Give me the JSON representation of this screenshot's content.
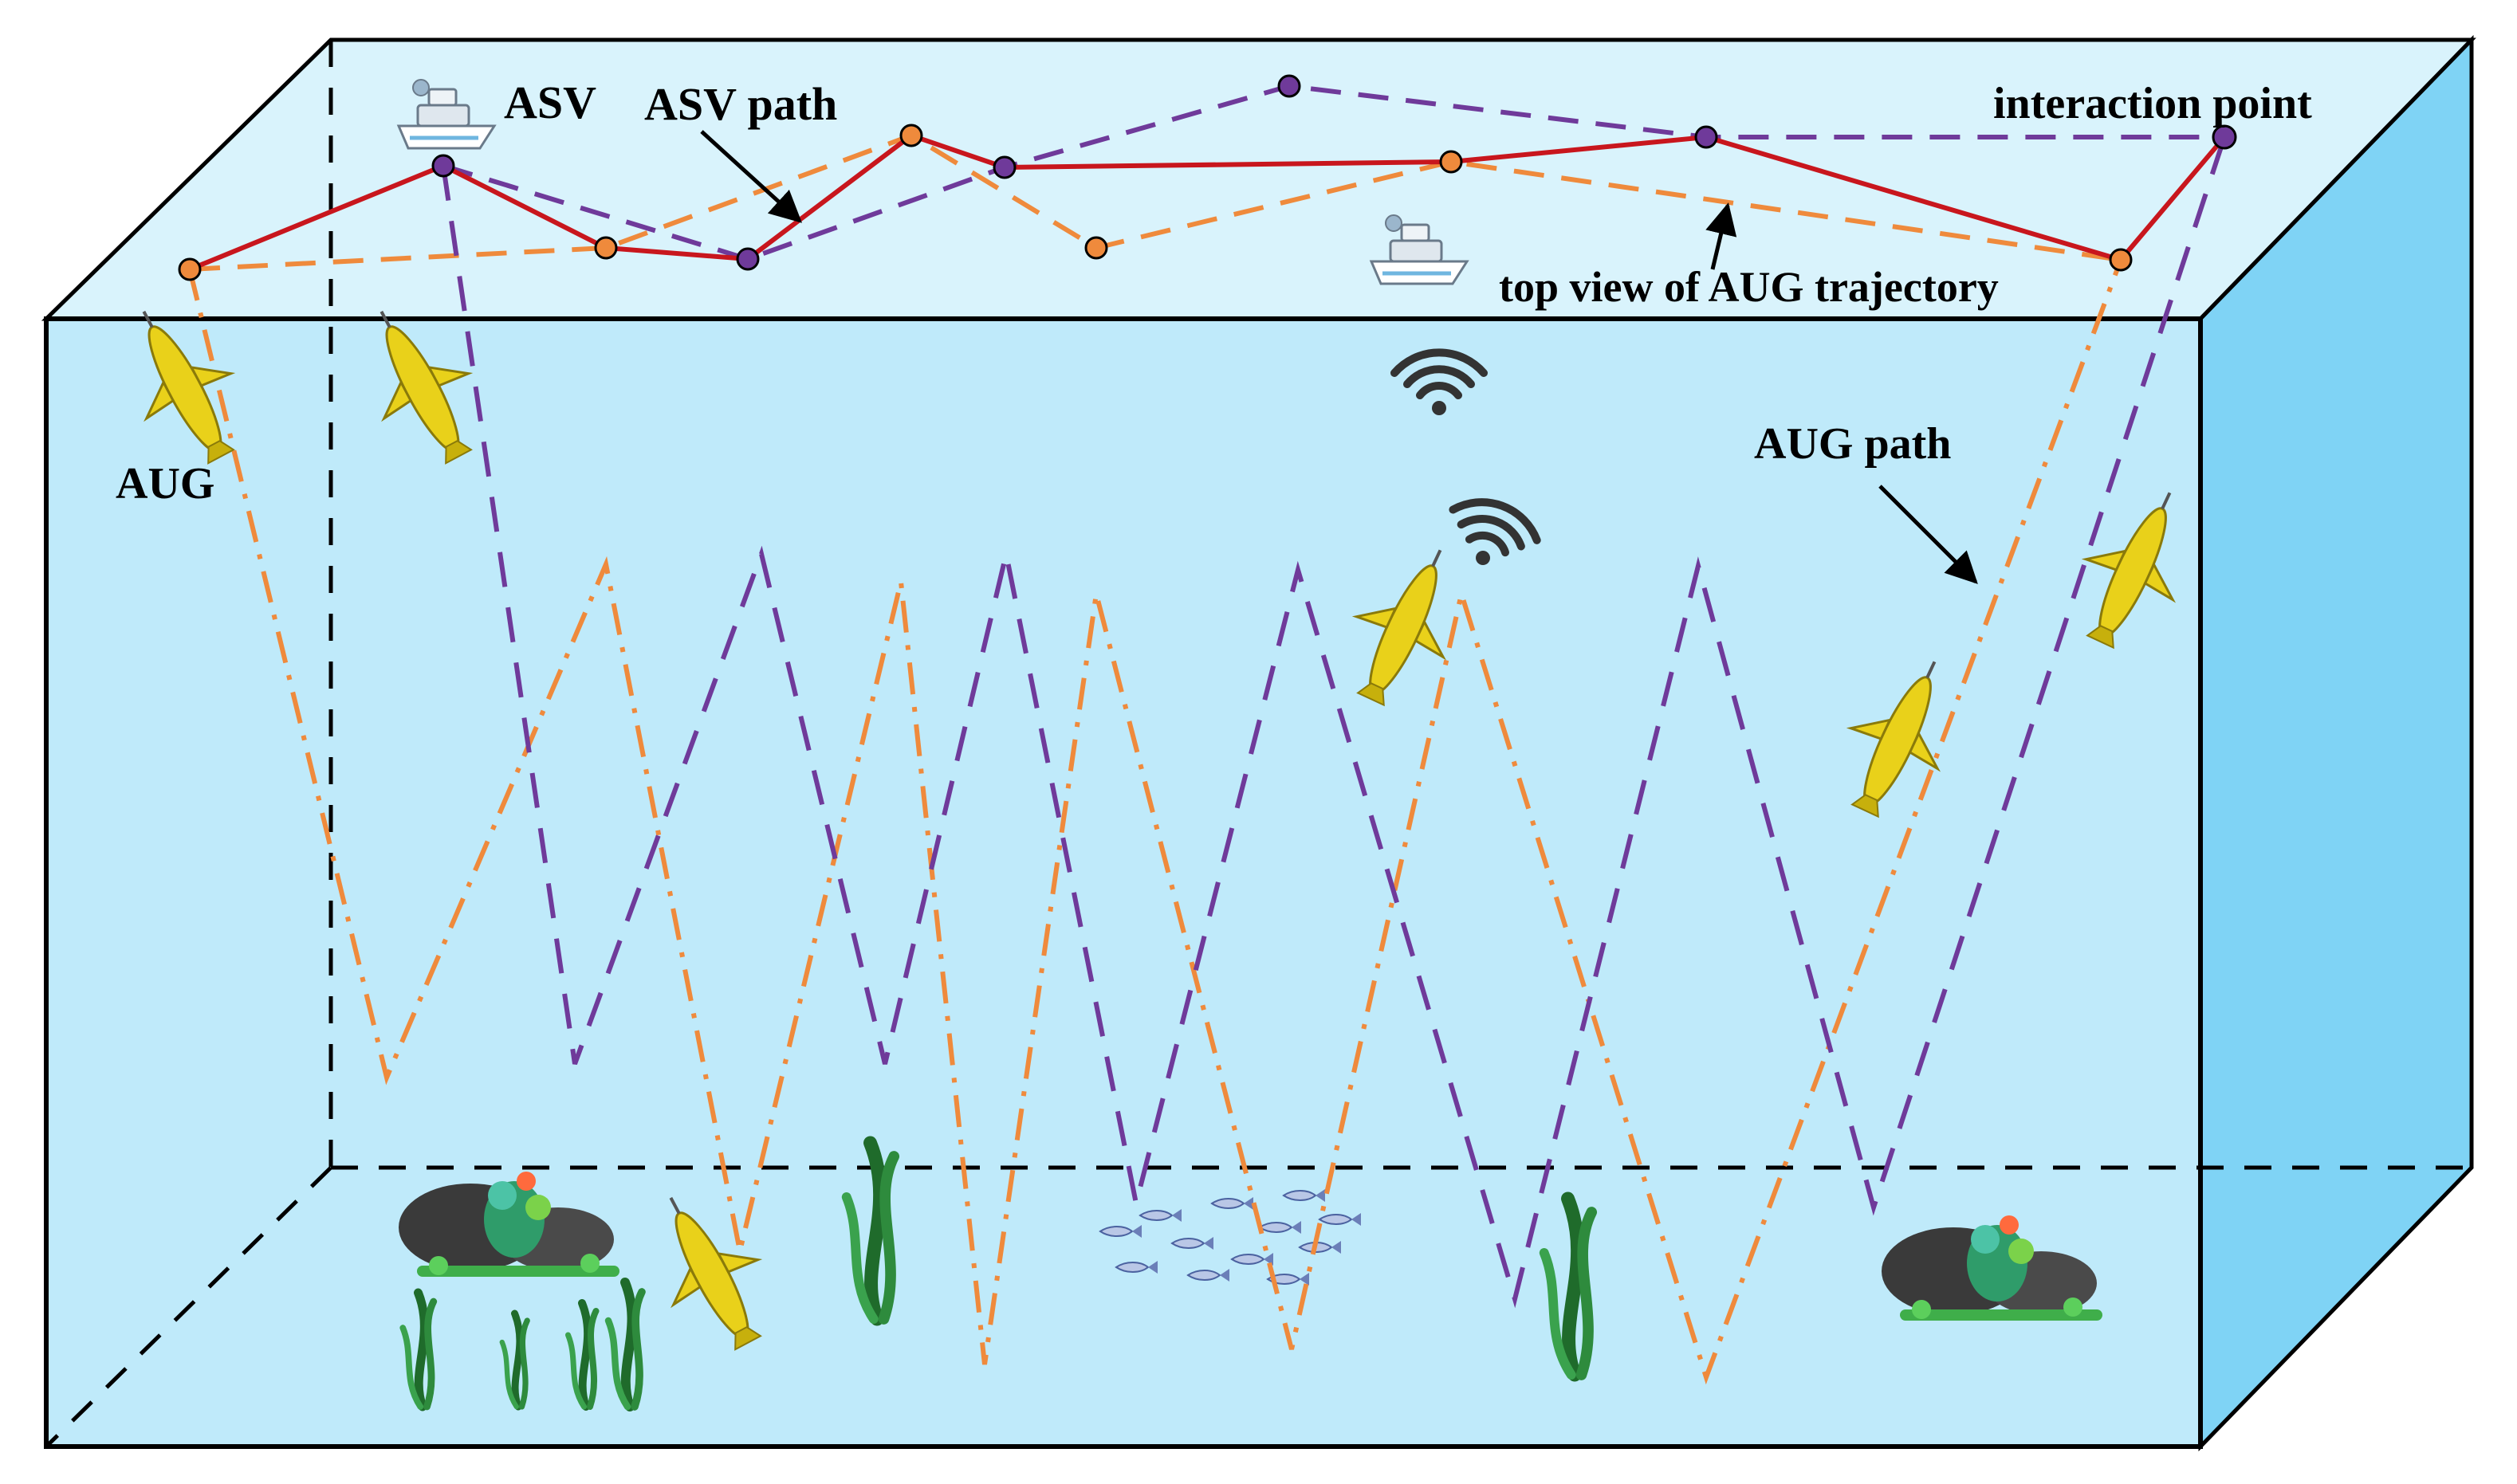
{
  "colors": {
    "water_front": "#bfeafa",
    "water_top": "#d9f3fc",
    "water_right": "#7fd3f5",
    "box_edge": "#000000",
    "asv_path": "#c8161d",
    "aug_path_orange": "#ef8a3c",
    "aug_path_purple": "#6f3a9a",
    "glider": "#e9d11a"
  },
  "labels": {
    "asv": "ASV",
    "asv_path": "ASV path",
    "interaction_point": "interaction point",
    "top_view": "top view of AUG trajectory",
    "aug": "AUG",
    "aug_path": "AUG path"
  },
  "icons": {
    "ship": "asv-ship-icon",
    "glider": "aug-glider-icon",
    "signal": "wireless-signal-icon",
    "fish": "fish-school-icon",
    "reef": "coral-reef-icon",
    "seaweed": "seaweed-icon"
  }
}
